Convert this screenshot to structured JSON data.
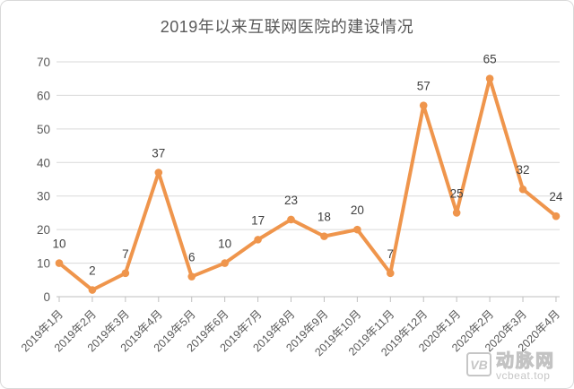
{
  "chart_data": {
    "type": "line",
    "title": "2019年以来互联网医院的建设情况",
    "categories": [
      "2019年1月",
      "2019年2月",
      "2019年3月",
      "2019年4月",
      "2019年5月",
      "2019年6月",
      "2019年7月",
      "2019年8月",
      "2019年9月",
      "2019年10月",
      "2019年11月",
      "2019年12月",
      "2020年1月",
      "2020年2月",
      "2020年3月",
      "2020年4月"
    ],
    "values": [
      10,
      2,
      7,
      37,
      6,
      10,
      17,
      23,
      18,
      20,
      7,
      57,
      25,
      65,
      32,
      24
    ],
    "xlabel": "",
    "ylabel": "",
    "ylim": [
      0,
      70
    ],
    "yticks": [
      0,
      10,
      20,
      30,
      40,
      50,
      60,
      70
    ],
    "grid": true,
    "legend": false,
    "data_labels": true,
    "x_label_rotation": -45
  },
  "theme": {
    "line_color": "#EF954C",
    "marker_color": "#EF954C",
    "grid_color": "#D9D9D9",
    "axis_color": "#BFBFBF",
    "tick_label_color": "#595959",
    "data_label_color": "#404040",
    "title_color": "#595959"
  },
  "watermark": {
    "logo_text": "VB",
    "brand": "动脉网",
    "site": "vcbeat.top"
  }
}
